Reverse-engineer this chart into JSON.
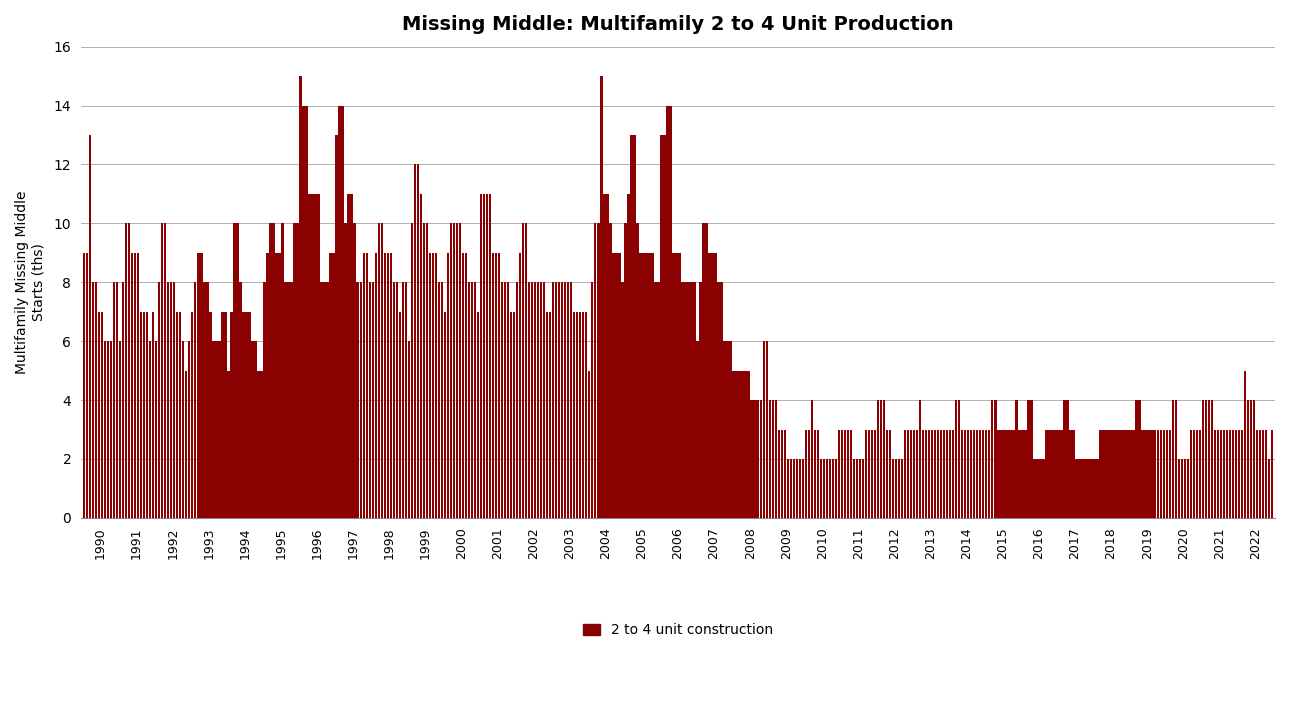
{
  "title": "Missing Middle: Multifamily 2 to 4 Unit Production",
  "ylabel": "Multifamily Missing Middle\nStarts (ths)",
  "legend_label": "2 to 4 unit construction",
  "bar_color": "#8B0000",
  "background_color": "#ffffff",
  "ylim": [
    0,
    16
  ],
  "yticks": [
    0,
    2,
    4,
    6,
    8,
    10,
    12,
    14,
    16
  ],
  "years": [
    1990,
    1991,
    1992,
    1993,
    1994,
    1995,
    1996,
    1997,
    1998,
    1999,
    2000,
    2001,
    2002,
    2003,
    2004,
    2005,
    2006,
    2007,
    2008,
    2009,
    2010,
    2011,
    2012,
    2013,
    2014,
    2015,
    2016,
    2017,
    2018,
    2019,
    2020,
    2021,
    2022
  ],
  "monthly_values": [
    [
      9,
      9,
      13,
      8,
      8,
      7,
      7,
      6,
      6,
      6,
      8,
      8
    ],
    [
      6,
      8,
      10,
      10,
      9,
      9,
      9,
      7,
      7,
      7,
      6,
      7
    ],
    [
      6,
      8,
      10,
      10,
      8,
      8,
      8,
      7,
      7,
      6,
      5,
      6
    ],
    [
      7,
      8,
      9,
      9,
      8,
      8,
      7,
      6,
      6,
      6,
      7,
      7
    ],
    [
      5,
      7,
      10,
      10,
      8,
      7,
      7,
      7,
      6,
      6,
      5,
      5
    ],
    [
      8,
      9,
      10,
      10,
      9,
      9,
      10,
      8,
      8,
      8,
      10,
      10
    ],
    [
      15,
      14,
      14,
      11,
      11,
      11,
      11,
      8,
      8,
      8,
      9,
      9
    ],
    [
      13,
      14,
      14,
      10,
      11,
      11,
      10,
      8,
      8,
      9,
      9,
      8
    ],
    [
      8,
      9,
      10,
      10,
      9,
      9,
      9,
      8,
      8,
      7,
      8,
      8
    ],
    [
      6,
      10,
      12,
      12,
      11,
      10,
      10,
      9,
      9,
      9,
      8,
      8
    ],
    [
      7,
      9,
      10,
      10,
      10,
      10,
      9,
      9,
      8,
      8,
      8,
      7
    ],
    [
      11,
      11,
      11,
      11,
      9,
      9,
      9,
      8,
      8,
      8,
      7,
      7
    ],
    [
      8,
      9,
      10,
      10,
      8,
      8,
      8,
      8,
      8,
      8,
      7,
      7
    ],
    [
      8,
      8,
      8,
      8,
      8,
      8,
      8,
      7,
      7,
      7,
      7,
      7
    ],
    [
      5,
      8,
      10,
      10,
      15,
      11,
      11,
      10,
      9,
      9,
      9,
      8
    ],
    [
      10,
      11,
      13,
      13,
      10,
      9,
      9,
      9,
      9,
      9,
      8,
      8
    ],
    [
      13,
      13,
      14,
      14,
      9,
      9,
      9,
      8,
      8,
      8,
      8,
      8
    ],
    [
      6,
      8,
      10,
      10,
      9,
      9,
      9,
      8,
      8,
      6,
      6,
      6
    ],
    [
      5,
      5,
      5,
      5,
      5,
      5,
      4,
      4,
      4,
      4,
      6,
      6
    ],
    [
      4,
      4,
      4,
      3,
      3,
      3,
      2,
      2,
      2,
      2,
      2,
      2
    ],
    [
      3,
      3,
      4,
      3,
      3,
      2,
      2,
      2,
      2,
      2,
      2,
      3
    ],
    [
      3,
      3,
      3,
      3,
      2,
      2,
      2,
      2,
      3,
      3,
      3,
      3
    ],
    [
      4,
      4,
      4,
      3,
      3,
      2,
      2,
      2,
      2,
      3,
      3,
      3
    ],
    [
      3,
      3,
      4,
      3,
      3,
      3,
      3,
      3,
      3,
      3,
      3,
      3
    ],
    [
      3,
      3,
      4,
      4,
      3,
      3,
      3,
      3,
      3,
      3,
      3,
      3
    ],
    [
      3,
      3,
      4,
      4,
      3,
      3,
      3,
      3,
      3,
      3,
      4,
      3
    ],
    [
      3,
      3,
      4,
      4,
      2,
      2,
      2,
      2,
      3,
      3,
      3,
      3
    ],
    [
      3,
      3,
      4,
      4,
      3,
      3,
      2,
      2,
      2,
      2,
      2,
      2
    ],
    [
      2,
      2,
      3,
      3,
      3,
      3,
      3,
      3,
      3,
      3,
      3,
      3
    ],
    [
      3,
      3,
      4,
      4,
      3,
      3,
      3,
      3,
      3,
      3,
      3,
      3
    ],
    [
      3,
      3,
      4,
      4,
      2,
      2,
      2,
      2,
      3,
      3,
      3,
      3
    ],
    [
      4,
      4,
      4,
      4,
      3,
      3,
      3,
      3,
      3,
      3,
      3,
      3
    ],
    [
      3,
      3,
      5,
      4,
      4,
      4,
      3,
      3,
      3,
      3,
      2,
      3
    ]
  ]
}
